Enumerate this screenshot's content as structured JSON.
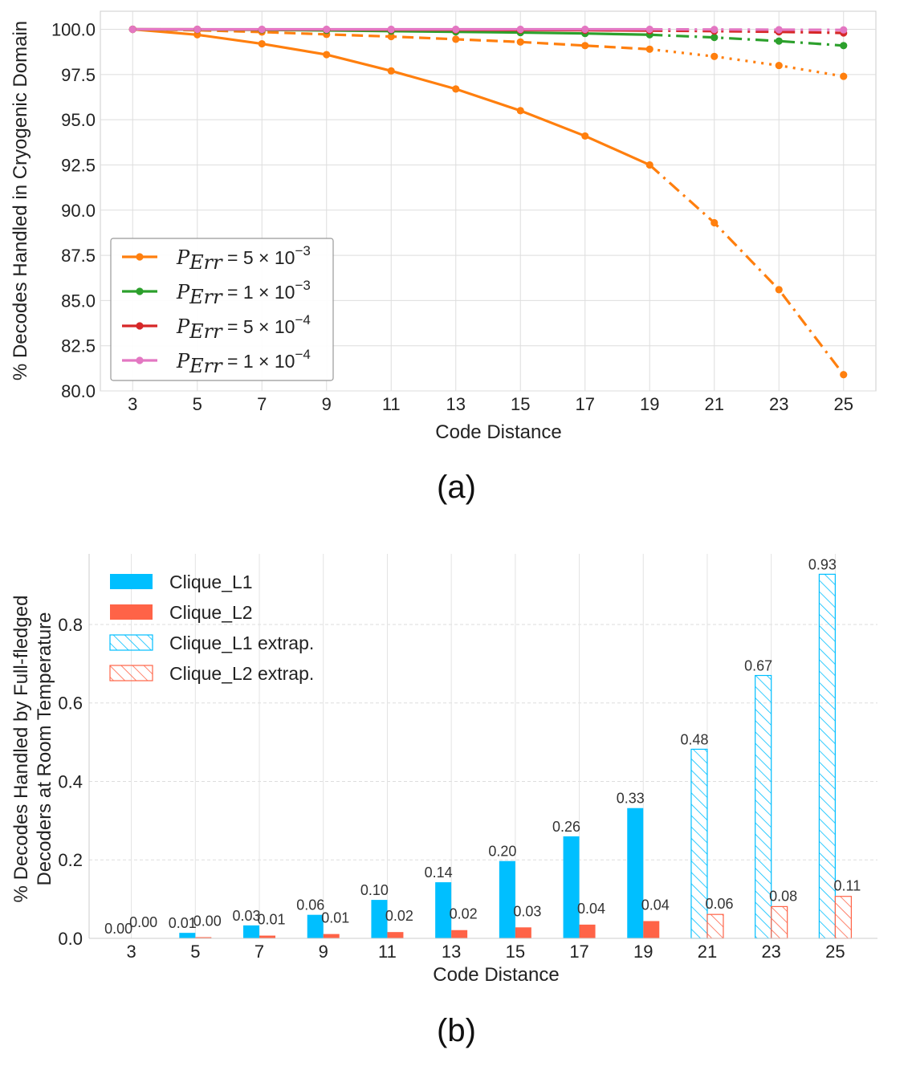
{
  "panels": {
    "a": "(a)",
    "b": "(b)"
  },
  "chart_data": [
    {
      "type": "line",
      "title": "",
      "xlabel": "Code Distance",
      "ylabel": "% Decodes Handled in Cryogenic Domain",
      "categories": [
        "3",
        "5",
        "7",
        "9",
        "11",
        "13",
        "15",
        "17",
        "19",
        "21",
        "23",
        "25"
      ],
      "xlim": [
        2,
        26
      ],
      "ylim": [
        80.0,
        101.0
      ],
      "yticks": [
        "80.0",
        "82.5",
        "85.0",
        "87.5",
        "90.0",
        "92.5",
        "95.0",
        "97.5",
        "100.0"
      ],
      "grid": true,
      "legend_position": "lower-left",
      "series": [
        {
          "name": "P_Err = 5 × 10^-3",
          "legend": {
            "base": "P",
            "sub": "Err",
            "text": " = 5 × 10",
            "exp": "−3"
          },
          "color": "#ff7f0e",
          "values": [
            100.0,
            99.7,
            99.2,
            98.6,
            97.7,
            96.7,
            95.5,
            94.1,
            92.5,
            89.3,
            85.6,
            80.9
          ],
          "measured_style": "solid",
          "extrap_style": "dashdot"
        },
        {
          "name": "P_Err = 1 × 10^-3",
          "legend": {
            "base": "P",
            "sub": "Err",
            "text": " = 1 × 10",
            "exp": "−3"
          },
          "color": "#2ca02c",
          "values": [
            100.0,
            99.99,
            99.97,
            99.94,
            99.9,
            99.86,
            99.82,
            99.77,
            99.7,
            99.55,
            99.35,
            99.1
          ],
          "measured_style": "solid",
          "extrap_style": "dashdot"
        },
        {
          "name": "P_Err = 5 × 10^-4",
          "legend": {
            "base": "P",
            "sub": "Err",
            "text": " = 5 × 10",
            "exp": "−4"
          },
          "color": "#d62728",
          "values": [
            100.0,
            100.0,
            99.99,
            99.99,
            99.98,
            99.97,
            99.96,
            99.95,
            99.93,
            99.9,
            99.86,
            99.8
          ],
          "measured_style": "solid",
          "extrap_style": "dashdot"
        },
        {
          "name": "P_Err = 1 × 10^-4",
          "legend": {
            "base": "P",
            "sub": "Err",
            "text": " = 1 × 10",
            "exp": "−4"
          },
          "color": "#e377c2",
          "values": [
            100.0,
            100.0,
            100.0,
            100.0,
            100.0,
            100.0,
            100.0,
            100.0,
            100.0,
            99.99,
            99.98,
            99.97
          ],
          "measured_style": "solid",
          "extrap_style": "dashdot"
        }
      ],
      "extra_series": [
        {
          "name": "P_Err = 5 × 10^-3 (measured, dashed)",
          "color": "#ff7f0e",
          "categories": [
            "3",
            "5",
            "7",
            "9",
            "11",
            "13",
            "15",
            "17",
            "19",
            "21",
            "23",
            "25"
          ],
          "values": [
            100.0,
            99.95,
            99.85,
            99.72,
            99.6,
            99.45,
            99.3,
            99.1,
            98.9,
            98.5,
            98.0,
            97.4
          ],
          "measured_style": "dashed",
          "extrap_style": "dotted"
        }
      ],
      "measured_until": "19"
    },
    {
      "type": "bar",
      "title": "",
      "xlabel": "Code Distance",
      "ylabel": [
        "% Decodes Handled by Full-fledged",
        "Decoders at Room Temperature"
      ],
      "categories": [
        "3",
        "5",
        "7",
        "9",
        "11",
        "13",
        "15",
        "17",
        "19",
        "21",
        "23",
        "25"
      ],
      "ylim": [
        0.0,
        0.98
      ],
      "yticks": [
        "0.0",
        "0.2",
        "0.4",
        "0.6",
        "0.8"
      ],
      "grid": true,
      "legend_position": "top-left",
      "extrapolated_from": "21",
      "series": [
        {
          "name": "Clique_L1",
          "color": "#00bfff",
          "values": [
            0.0,
            0.014,
            0.033,
            0.06,
            0.098,
            0.143,
            0.197,
            0.26,
            0.332,
            0.482,
            0.67,
            0.928
          ],
          "labels": [
            "0.00",
            "0.01",
            "0.03",
            "0.06",
            "0.10",
            "0.14",
            "0.20",
            "0.26",
            "0.33",
            "0.48",
            "0.67",
            "0.93"
          ]
        },
        {
          "name": "Clique_L2",
          "color": "#ff6347",
          "values": [
            0.0,
            0.003,
            0.007,
            0.011,
            0.016,
            0.021,
            0.028,
            0.035,
            0.044,
            0.061,
            0.081,
            0.107
          ],
          "labels": [
            "0.00",
            "0.00",
            "0.01",
            "0.01",
            "0.02",
            "0.02",
            "0.03",
            "0.04",
            "0.04",
            "0.06",
            "0.08",
            "0.11"
          ]
        }
      ],
      "legend": [
        "Clique_L1",
        "Clique_L2",
        "Clique_L1 extrap.",
        "Clique_L2 extrap."
      ]
    }
  ]
}
